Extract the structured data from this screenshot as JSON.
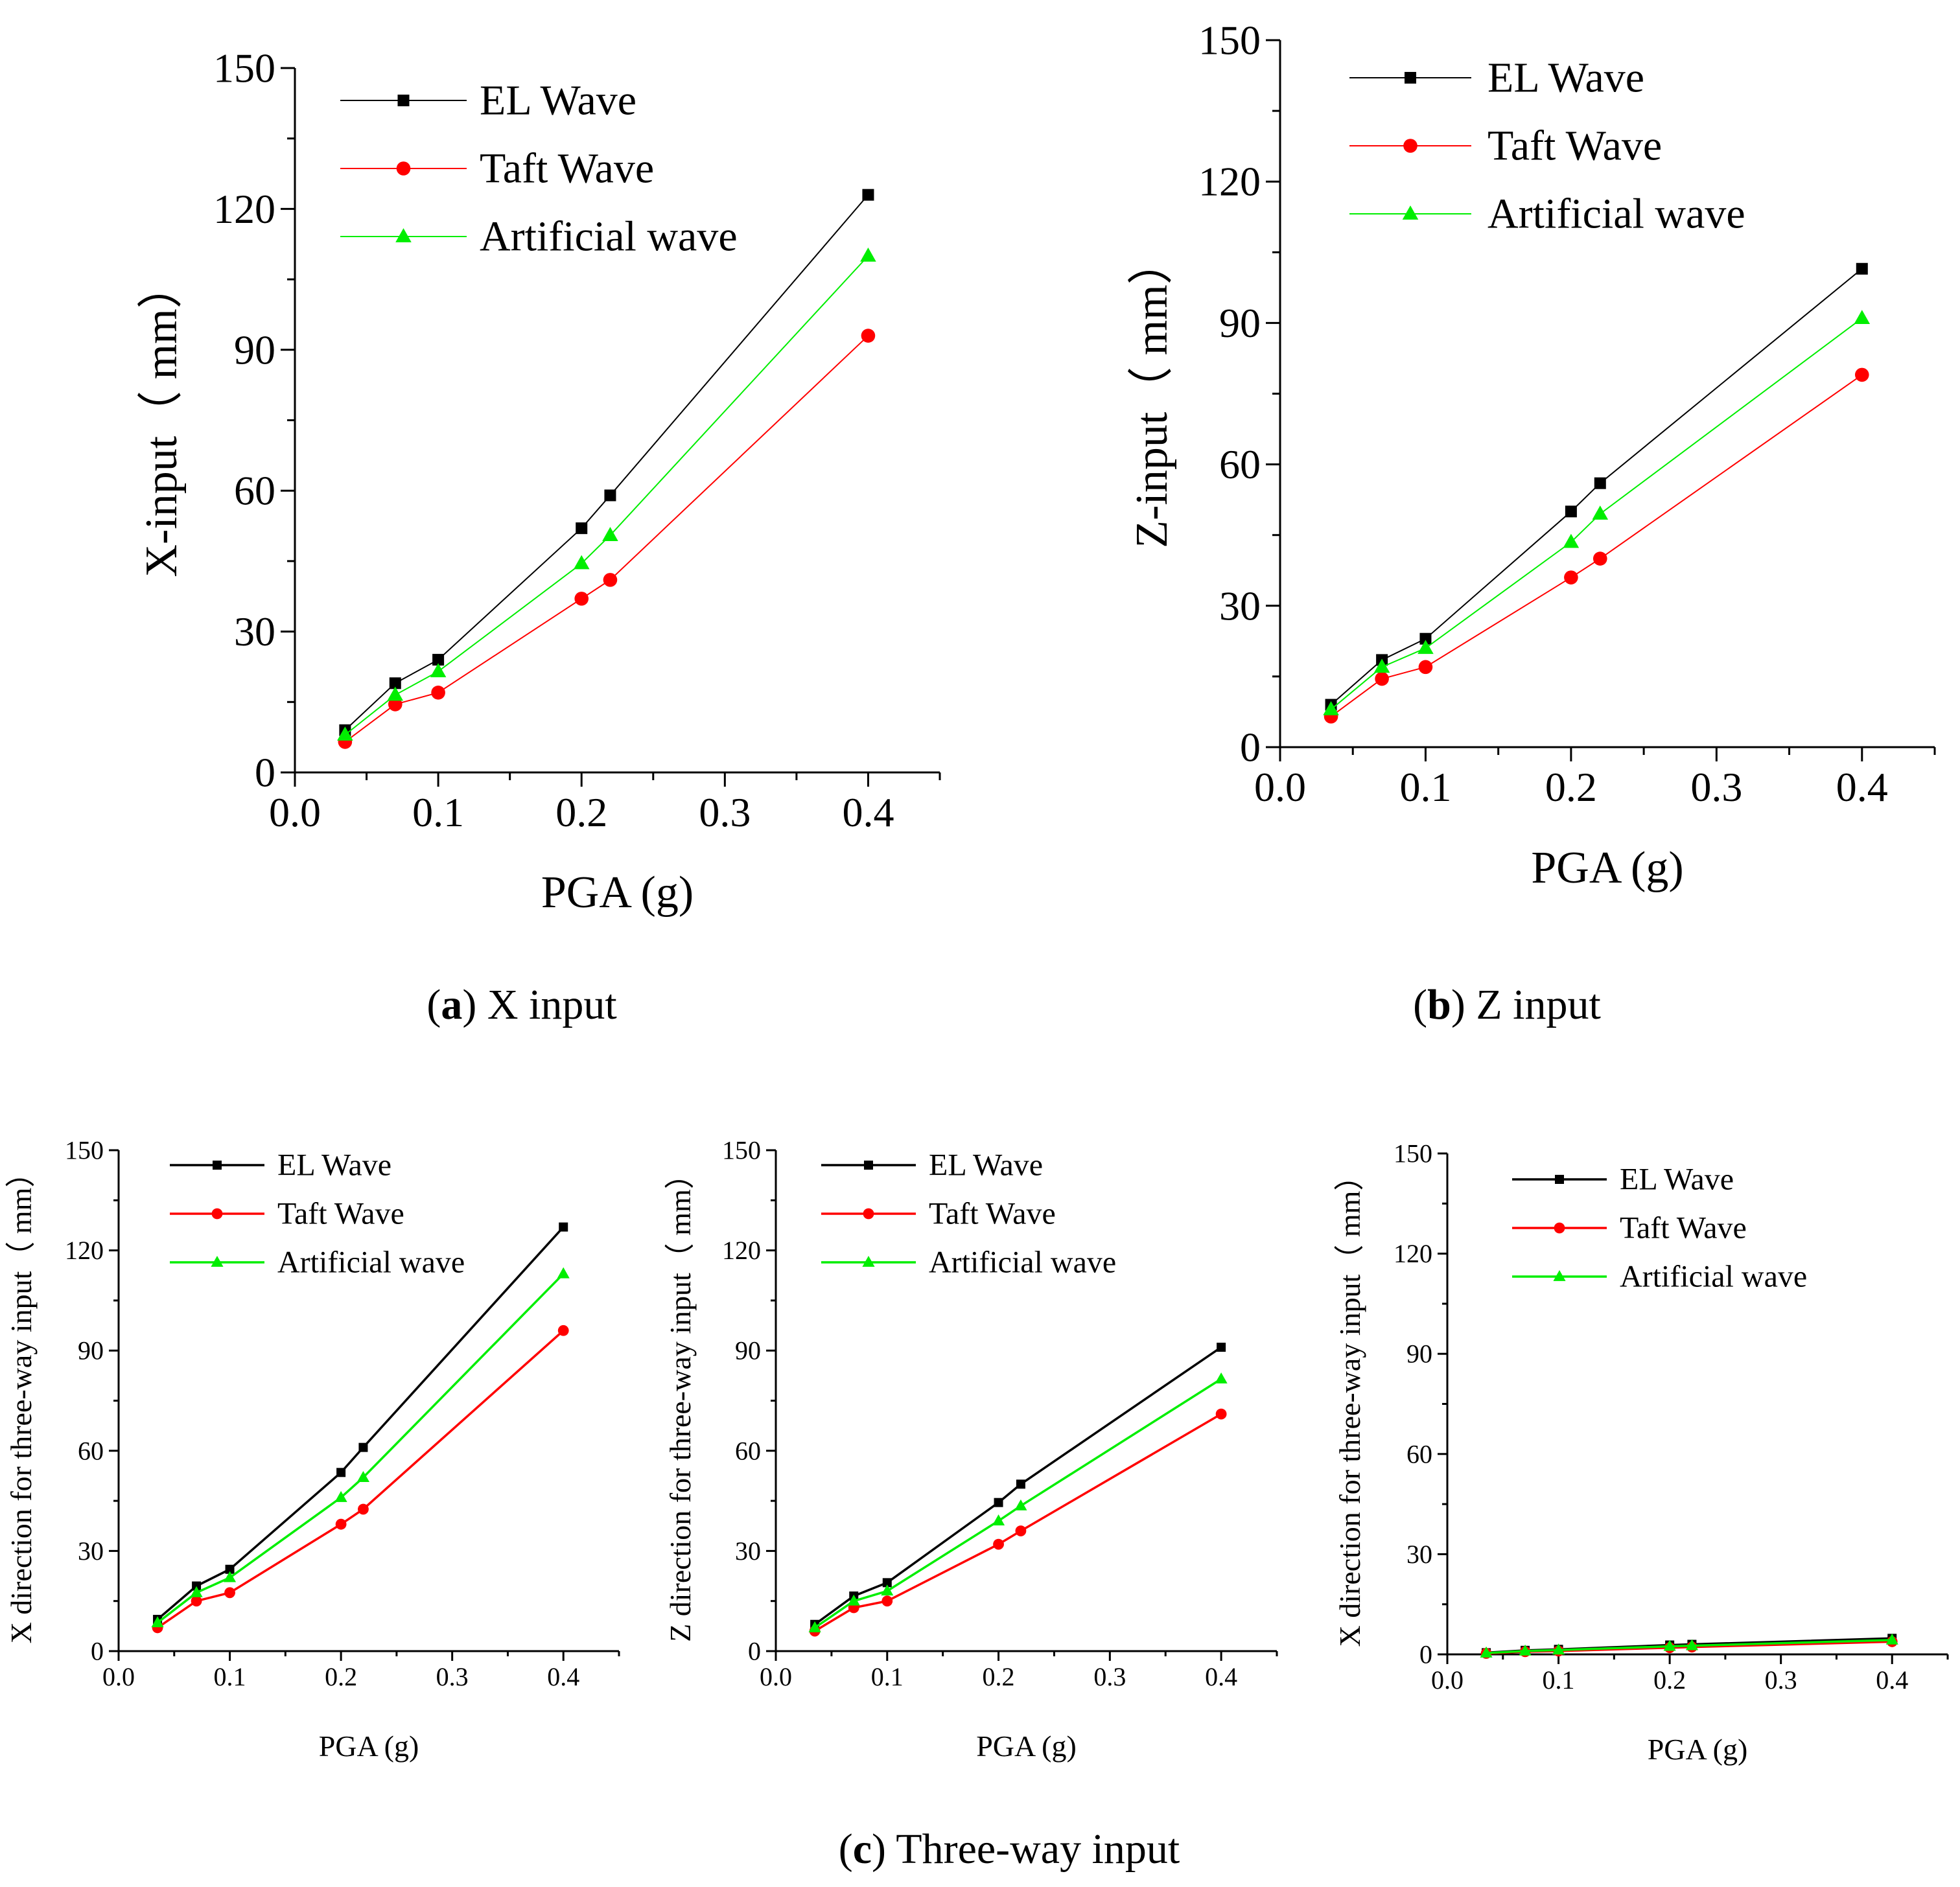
{
  "chart_data": [
    {
      "id": "a",
      "type": "line",
      "xlabel": "PGA (g)",
      "ylabel": "X-input（ mm）",
      "xlim": [
        0.0,
        0.45
      ],
      "ylim": [
        0,
        150
      ],
      "xticks": [
        "0.0",
        "0.1",
        "0.2",
        "0.3",
        "0.4"
      ],
      "yticks": [
        "0",
        "30",
        "60",
        "90",
        "120",
        "150"
      ],
      "x": [
        0.035,
        0.07,
        0.1,
        0.2,
        0.22,
        0.4
      ],
      "series": [
        {
          "name": "EL Wave",
          "color": "#000000",
          "marker": "square",
          "values": [
            9,
            19,
            24,
            52,
            59,
            123
          ]
        },
        {
          "name": "Taft Wave",
          "color": "#ff0000",
          "marker": "circle",
          "values": [
            6.5,
            14.5,
            17,
            37,
            41,
            93
          ]
        },
        {
          "name": "Artificial wave",
          "color": "#00ee00",
          "marker": "triangle",
          "values": [
            8,
            16.5,
            21.5,
            44.5,
            50.5,
            110
          ]
        }
      ],
      "caption": {
        "letter": "a",
        "text": " X input"
      }
    },
    {
      "id": "b",
      "type": "line",
      "xlabel": "PGA (g)",
      "ylabel": "Z-input（ mm）",
      "xlim": [
        0.0,
        0.45
      ],
      "ylim": [
        0,
        150
      ],
      "xticks": [
        "0.0",
        "0.1",
        "0.2",
        "0.3",
        "0.4"
      ],
      "yticks": [
        "0",
        "30",
        "60",
        "90",
        "120",
        "150"
      ],
      "x": [
        0.035,
        0.07,
        0.1,
        0.2,
        0.22,
        0.4
      ],
      "series": [
        {
          "name": "EL Wave",
          "color": "#000000",
          "marker": "square",
          "values": [
            9,
            18.5,
            23,
            50,
            56,
            101.5
          ]
        },
        {
          "name": "Taft Wave",
          "color": "#ff0000",
          "marker": "circle",
          "values": [
            6.5,
            14.5,
            17,
            36,
            40,
            79
          ]
        },
        {
          "name": "Artificial wave",
          "color": "#00ee00",
          "marker": "triangle",
          "values": [
            8,
            17,
            21,
            43.5,
            49.5,
            91
          ]
        }
      ],
      "caption": {
        "letter": "b",
        "text": " Z input"
      }
    },
    {
      "id": "c1",
      "type": "line",
      "xlabel": "PGA (g)",
      "ylabel": "X direction for three-way input（ mm）",
      "xlim": [
        0.0,
        0.45
      ],
      "ylim": [
        0,
        150
      ],
      "xticks": [
        "0.0",
        "0.1",
        "0.2",
        "0.3",
        "0.4"
      ],
      "yticks": [
        "0",
        "30",
        "60",
        "90",
        "120",
        "150"
      ],
      "x": [
        0.035,
        0.07,
        0.1,
        0.2,
        0.22,
        0.4
      ],
      "series": [
        {
          "name": "EL Wave",
          "color": "#000000",
          "marker": "square",
          "values": [
            9.5,
            19.5,
            24.5,
            53.5,
            61,
            127
          ]
        },
        {
          "name": "Taft Wave",
          "color": "#ff0000",
          "marker": "circle",
          "values": [
            7,
            15,
            17.5,
            38,
            42.5,
            96
          ]
        },
        {
          "name": "Artificial wave",
          "color": "#00ee00",
          "marker": "triangle",
          "values": [
            8.5,
            17.5,
            22,
            46,
            52,
            113
          ]
        }
      ]
    },
    {
      "id": "c2",
      "type": "line",
      "xlabel": "PGA (g)",
      "ylabel": "Z direction for three-way input（ mm）",
      "xlim": [
        0.0,
        0.45
      ],
      "ylim": [
        0,
        150
      ],
      "xticks": [
        "0.0",
        "0.1",
        "0.2",
        "0.3",
        "0.4"
      ],
      "yticks": [
        "0",
        "30",
        "60",
        "90",
        "120",
        "150"
      ],
      "x": [
        0.035,
        0.07,
        0.1,
        0.2,
        0.22,
        0.4
      ],
      "series": [
        {
          "name": "EL Wave",
          "color": "#000000",
          "marker": "square",
          "values": [
            8,
            16.5,
            20.5,
            44.5,
            50,
            91
          ]
        },
        {
          "name": "Taft Wave",
          "color": "#ff0000",
          "marker": "circle",
          "values": [
            6,
            13,
            15,
            32,
            36,
            71
          ]
        },
        {
          "name": "Artificial wave",
          "color": "#00ee00",
          "marker": "triangle",
          "values": [
            7,
            15,
            18,
            39,
            43.5,
            81.5
          ]
        }
      ]
    },
    {
      "id": "c3",
      "type": "line",
      "xlabel": "PGA (g)",
      "ylabel": "X direction for three-way input（ mm）",
      "xlim": [
        0.0,
        0.45
      ],
      "ylim": [
        0,
        150
      ],
      "xticks": [
        "0.0",
        "0.1",
        "0.2",
        "0.3",
        "0.4"
      ],
      "yticks": [
        "0",
        "30",
        "60",
        "90",
        "120",
        "150"
      ],
      "x": [
        0.035,
        0.07,
        0.1,
        0.2,
        0.22,
        0.4
      ],
      "series": [
        {
          "name": "EL Wave",
          "color": "#000000",
          "marker": "square",
          "values": [
            0.5,
            1.2,
            1.5,
            2.8,
            3,
            4.8
          ]
        },
        {
          "name": "Taft Wave",
          "color": "#ff0000",
          "marker": "circle",
          "values": [
            0.3,
            0.8,
            1,
            2,
            2.2,
            3.8
          ]
        },
        {
          "name": "Artificial wave",
          "color": "#00ee00",
          "marker": "triangle",
          "values": [
            0.4,
            1,
            1.3,
            2.4,
            2.6,
            4.3
          ]
        }
      ]
    }
  ],
  "group_caption": {
    "letter": "c",
    "text": " Three-way input"
  }
}
